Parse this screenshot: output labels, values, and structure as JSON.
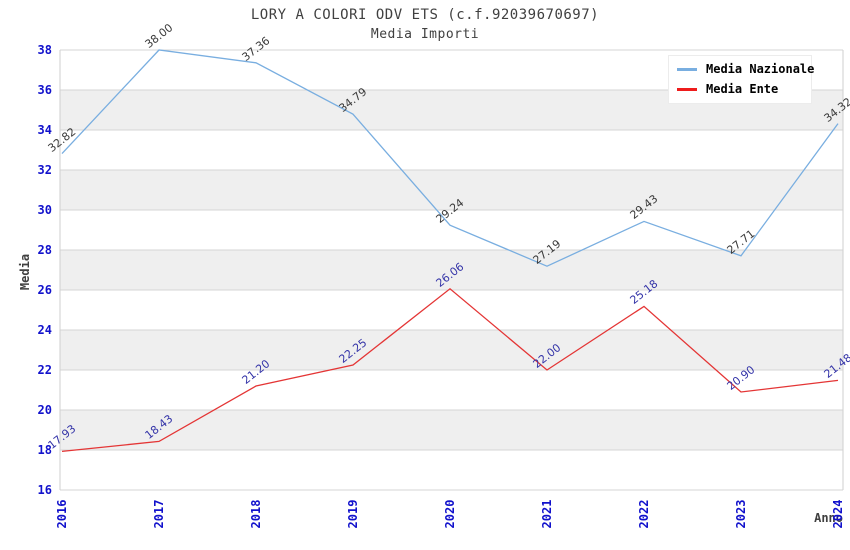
{
  "chart_data": {
    "type": "line",
    "title": "LORY A COLORI ODV ETS (c.f.92039670697)",
    "subtitle": "Media Importi",
    "xlabel": "Anno",
    "ylabel": "Media",
    "x": [
      2016,
      2017,
      2018,
      2019,
      2020,
      2021,
      2022,
      2023,
      2024
    ],
    "series": [
      {
        "name": "Media Nazionale",
        "color": "#79aee0",
        "label_color": "#3a3a3a",
        "values": [
          32.82,
          38.0,
          37.36,
          34.79,
          29.24,
          27.19,
          29.43,
          27.71,
          34.32
        ]
      },
      {
        "name": "Media Ente",
        "color": "#e43535",
        "label_color": "#3434a8",
        "values": [
          17.93,
          18.43,
          21.2,
          22.25,
          26.06,
          22.0,
          25.18,
          20.9,
          21.48
        ]
      }
    ],
    "ylim": [
      16,
      38
    ],
    "yticks": [
      16,
      18,
      20,
      22,
      24,
      26,
      28,
      30,
      32,
      34,
      36,
      38
    ],
    "grid": true,
    "legend_position": "top-right",
    "value_label_decimals": 2
  },
  "colors": {
    "tick_label": "#1111cc",
    "axis_title": "#404040",
    "title_text": "#404040",
    "gridline": "#d6d6d6",
    "band": "#efefef",
    "plot_border": "#cfcfcf",
    "legend_swatch_nazionale": "#79aee0",
    "legend_swatch_ente": "#ee1c1c"
  }
}
